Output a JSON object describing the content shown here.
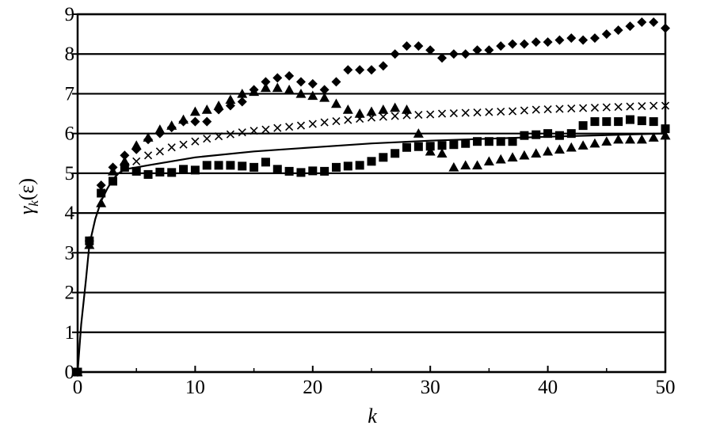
{
  "chart_data": {
    "type": "scatter",
    "title": "",
    "xlabel": "k",
    "ylabel": "γk(ε)",
    "ylabel_main": "γ",
    "ylabel_sub": "k",
    "ylabel_arg": "(ε)",
    "xlim": [
      0,
      50
    ],
    "ylim": [
      0,
      9
    ],
    "x_ticks": [
      0,
      10,
      20,
      30,
      40,
      50
    ],
    "y_ticks": [
      0,
      1,
      2,
      3,
      4,
      5,
      6,
      7,
      8,
      9
    ],
    "grid": "horizontal",
    "legend": "none",
    "series": [
      {
        "marker": "diamond",
        "x": [
          0,
          1,
          2,
          3,
          4,
          5,
          6,
          7,
          8,
          9,
          10,
          11,
          12,
          13,
          14,
          15,
          16,
          17,
          18,
          19,
          20,
          21,
          22,
          23,
          24,
          25,
          26,
          27,
          28,
          29,
          30,
          31,
          32,
          33,
          34,
          35,
          36,
          37,
          38,
          39,
          40,
          41,
          42,
          43,
          44,
          45,
          46,
          47,
          48,
          49,
          50
        ],
        "y": [
          0,
          3.3,
          4.7,
          5.15,
          5.45,
          5.6,
          5.85,
          6.0,
          6.15,
          6.3,
          6.3,
          6.3,
          6.6,
          6.7,
          6.8,
          7.1,
          7.3,
          7.4,
          7.45,
          7.3,
          7.25,
          7.1,
          7.3,
          7.6,
          7.6,
          7.6,
          7.7,
          8.0,
          8.2,
          8.2,
          8.1,
          7.9,
          8.0,
          8.0,
          8.1,
          8.1,
          8.2,
          8.25,
          8.25,
          8.3,
          8.3,
          8.35,
          8.4,
          8.35,
          8.4,
          8.5,
          8.6,
          8.7,
          8.8,
          8.8,
          8.65
        ]
      },
      {
        "marker": "triangle",
        "x": [
          0,
          1,
          2,
          3,
          4,
          5,
          6,
          7,
          8,
          9,
          10,
          11,
          12,
          13,
          14,
          15,
          16,
          17,
          18,
          19,
          20,
          21,
          22,
          23,
          24,
          25,
          26,
          27,
          28,
          29,
          30,
          31,
          32,
          33,
          34,
          35,
          36,
          37,
          38,
          39,
          40,
          41,
          42,
          43,
          44,
          45,
          46,
          47,
          48,
          49,
          50
        ],
        "y": [
          0,
          3.2,
          4.25,
          5.05,
          5.3,
          5.7,
          5.9,
          6.1,
          6.2,
          6.35,
          6.55,
          6.6,
          6.7,
          6.85,
          7.0,
          7.05,
          7.15,
          7.15,
          7.1,
          7.0,
          6.95,
          6.9,
          6.75,
          6.6,
          6.5,
          6.55,
          6.6,
          6.65,
          6.6,
          6.0,
          5.55,
          5.5,
          5.15,
          5.2,
          5.2,
          5.3,
          5.35,
          5.4,
          5.45,
          5.5,
          5.55,
          5.6,
          5.65,
          5.7,
          5.75,
          5.8,
          5.85,
          5.85,
          5.85,
          5.9,
          5.95
        ]
      },
      {
        "marker": "cross",
        "x": [
          5,
          6,
          7,
          8,
          9,
          10,
          11,
          12,
          13,
          14,
          15,
          16,
          17,
          18,
          19,
          20,
          21,
          22,
          23,
          24,
          25,
          26,
          27,
          28,
          29,
          30,
          31,
          32,
          33,
          34,
          35,
          36,
          37,
          38,
          39,
          40,
          41,
          42,
          43,
          44,
          45,
          46,
          47,
          48,
          49,
          50
        ],
        "y": [
          5.3,
          5.45,
          5.55,
          5.65,
          5.72,
          5.8,
          5.87,
          5.93,
          5.98,
          6.03,
          6.07,
          6.1,
          6.14,
          6.17,
          6.2,
          6.24,
          6.28,
          6.31,
          6.34,
          6.37,
          6.4,
          6.42,
          6.44,
          6.46,
          6.47,
          6.48,
          6.5,
          6.51,
          6.52,
          6.53,
          6.54,
          6.55,
          6.56,
          6.58,
          6.6,
          6.61,
          6.62,
          6.63,
          6.64,
          6.65,
          6.66,
          6.67,
          6.68,
          6.69,
          6.7,
          6.7
        ]
      },
      {
        "marker": "square",
        "x": [
          0,
          1,
          2,
          3,
          4,
          5,
          6,
          7,
          8,
          9,
          10,
          11,
          12,
          13,
          14,
          15,
          16,
          17,
          18,
          19,
          20,
          21,
          22,
          23,
          24,
          25,
          26,
          27,
          28,
          29,
          30,
          31,
          32,
          33,
          34,
          35,
          36,
          37,
          38,
          39,
          40,
          41,
          42,
          43,
          44,
          45,
          46,
          47,
          48,
          49,
          50
        ],
        "y": [
          0,
          3.3,
          4.5,
          4.8,
          5.15,
          5.05,
          4.97,
          5.03,
          5.02,
          5.1,
          5.08,
          5.2,
          5.2,
          5.2,
          5.18,
          5.15,
          5.28,
          5.1,
          5.05,
          5.02,
          5.06,
          5.05,
          5.15,
          5.18,
          5.2,
          5.3,
          5.4,
          5.5,
          5.65,
          5.67,
          5.68,
          5.7,
          5.72,
          5.75,
          5.8,
          5.8,
          5.8,
          5.8,
          5.95,
          5.97,
          6.0,
          5.95,
          6.0,
          6.2,
          6.3,
          6.3,
          6.3,
          6.35,
          6.32,
          6.3,
          6.12
        ]
      },
      {
        "marker": "line",
        "x": [
          0,
          0.3,
          0.7,
          1,
          1.5,
          2,
          2.5,
          3,
          3.5,
          4,
          5,
          6,
          8,
          10,
          15,
          20,
          25,
          30,
          35,
          40,
          45,
          50
        ],
        "y": [
          0,
          1.2,
          2.3,
          3.2,
          3.85,
          4.3,
          4.6,
          4.85,
          5.0,
          5.1,
          5.15,
          5.2,
          5.3,
          5.4,
          5.55,
          5.65,
          5.75,
          5.82,
          5.87,
          5.92,
          5.96,
          6.0
        ]
      }
    ]
  }
}
